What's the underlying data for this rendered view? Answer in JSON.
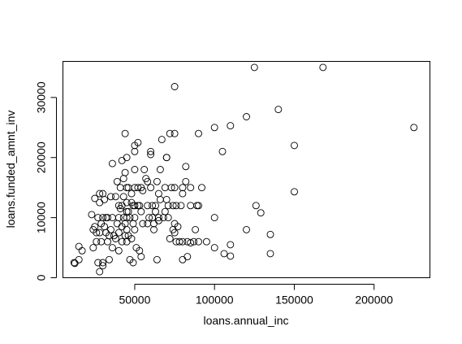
{
  "chart_data": {
    "type": "scatter",
    "xlabel": "loans.annual_inc",
    "ylabel": "loans.funded_amnt_inv",
    "xlim": [
      5000,
      235000
    ],
    "ylim": [
      0,
      36000
    ],
    "x_ticks": [
      50000,
      100000,
      150000,
      200000
    ],
    "x_tick_labels": [
      "50000",
      "100000",
      "150000",
      "200000"
    ],
    "y_ticks": [
      0,
      10000,
      20000,
      30000
    ],
    "y_tick_labels": [
      "0",
      "10000",
      "20000",
      "30000"
    ],
    "grid": false,
    "legend": "none",
    "points": [
      [
        12000,
        2500
      ],
      [
        12500,
        2400
      ],
      [
        15000,
        5200
      ],
      [
        17000,
        4500
      ],
      [
        15000,
        3000
      ],
      [
        23000,
        10500
      ],
      [
        24000,
        8000
      ],
      [
        24000,
        5000
      ],
      [
        25000,
        13200
      ],
      [
        25000,
        8500
      ],
      [
        26000,
        7500
      ],
      [
        26000,
        6000
      ],
      [
        27000,
        10000
      ],
      [
        27000,
        2500
      ],
      [
        28000,
        14000
      ],
      [
        28000,
        12500
      ],
      [
        28000,
        7500
      ],
      [
        28000,
        1000
      ],
      [
        29000,
        9000
      ],
      [
        29000,
        6000
      ],
      [
        30000,
        14000
      ],
      [
        30000,
        10000
      ],
      [
        30000,
        2500
      ],
      [
        30000,
        2000
      ],
      [
        31000,
        13000
      ],
      [
        31000,
        8500
      ],
      [
        32000,
        10000
      ],
      [
        32000,
        7500
      ],
      [
        33000,
        10000
      ],
      [
        33000,
        6000
      ],
      [
        34000,
        3000
      ],
      [
        34000,
        7000
      ],
      [
        35000,
        13500
      ],
      [
        35000,
        8000
      ],
      [
        36000,
        19000
      ],
      [
        36000,
        10000
      ],
      [
        36000,
        5000
      ],
      [
        37000,
        7000
      ],
      [
        38000,
        13500
      ],
      [
        38000,
        6500
      ],
      [
        39000,
        16000
      ],
      [
        39000,
        9000
      ],
      [
        40000,
        12000
      ],
      [
        40000,
        10000
      ],
      [
        40000,
        7500
      ],
      [
        40000,
        4500
      ],
      [
        41000,
        15000
      ],
      [
        41000,
        11500
      ],
      [
        42000,
        19500
      ],
      [
        42000,
        12000
      ],
      [
        42000,
        8500
      ],
      [
        42000,
        6000
      ],
      [
        43000,
        16500
      ],
      [
        43000,
        13500
      ],
      [
        43000,
        10000
      ],
      [
        44000,
        24000
      ],
      [
        44000,
        17500
      ],
      [
        44000,
        7000
      ],
      [
        44000,
        9000
      ],
      [
        45000,
        20000
      ],
      [
        45000,
        15000
      ],
      [
        45000,
        12500
      ],
      [
        45000,
        11000
      ],
      [
        45000,
        10000
      ],
      [
        45000,
        8000
      ],
      [
        45000,
        6000
      ],
      [
        46000,
        15000
      ],
      [
        46000,
        11000
      ],
      [
        46000,
        7000
      ],
      [
        47000,
        10000
      ],
      [
        47000,
        3000
      ],
      [
        48000,
        14000
      ],
      [
        48000,
        12500
      ],
      [
        48000,
        6500
      ],
      [
        49000,
        12000
      ],
      [
        49000,
        9000
      ],
      [
        49000,
        2500
      ],
      [
        50000,
        22000
      ],
      [
        50000,
        21000
      ],
      [
        50000,
        18000
      ],
      [
        50000,
        15000
      ],
      [
        50000,
        12000
      ],
      [
        50000,
        10000
      ],
      [
        50000,
        8000
      ],
      [
        51000,
        5000
      ],
      [
        52000,
        22500
      ],
      [
        52000,
        15000
      ],
      [
        52000,
        12000
      ],
      [
        53000,
        12000
      ],
      [
        53000,
        4500
      ],
      [
        54000,
        15000
      ],
      [
        54000,
        11000
      ],
      [
        54000,
        3500
      ],
      [
        55000,
        14500
      ],
      [
        55000,
        9000
      ],
      [
        56000,
        18000
      ],
      [
        57000,
        16500
      ],
      [
        58000,
        16000
      ],
      [
        58000,
        12000
      ],
      [
        58000,
        9000
      ],
      [
        59000,
        10000
      ],
      [
        60000,
        20500
      ],
      [
        60000,
        21000
      ],
      [
        60000,
        15000
      ],
      [
        61000,
        12000
      ],
      [
        61000,
        10000
      ],
      [
        62000,
        9000
      ],
      [
        62000,
        8000
      ],
      [
        63000,
        11000
      ],
      [
        63000,
        12000
      ],
      [
        64000,
        16000
      ],
      [
        64000,
        3000
      ],
      [
        65000,
        14000
      ],
      [
        65000,
        10000
      ],
      [
        65000,
        9500
      ],
      [
        66000,
        18000
      ],
      [
        66000,
        13000
      ],
      [
        67000,
        23000
      ],
      [
        68000,
        10000
      ],
      [
        69000,
        15000
      ],
      [
        69000,
        11000
      ],
      [
        70000,
        20000
      ],
      [
        70000,
        20000
      ],
      [
        70000,
        13000
      ],
      [
        71000,
        12000
      ],
      [
        71000,
        10000
      ],
      [
        72000,
        6500
      ],
      [
        72000,
        24000
      ],
      [
        73000,
        15000
      ],
      [
        74000,
        12000
      ],
      [
        74000,
        8000
      ],
      [
        75000,
        31800
      ],
      [
        75000,
        24000
      ],
      [
        75000,
        15000
      ],
      [
        75000,
        9000
      ],
      [
        75000,
        7500
      ],
      [
        76000,
        12000
      ],
      [
        76000,
        6000
      ],
      [
        77000,
        8500
      ],
      [
        78000,
        6000
      ],
      [
        79000,
        12000
      ],
      [
        80000,
        15000
      ],
      [
        80000,
        14000
      ],
      [
        80000,
        6000
      ],
      [
        80000,
        3000
      ],
      [
        82000,
        16000
      ],
      [
        82000,
        18500
      ],
      [
        83000,
        6000
      ],
      [
        83000,
        3500
      ],
      [
        85000,
        15000
      ],
      [
        85000,
        12000
      ],
      [
        85000,
        5800
      ],
      [
        87000,
        6000
      ],
      [
        88000,
        8000
      ],
      [
        89000,
        12000
      ],
      [
        90000,
        12000
      ],
      [
        90000,
        24000
      ],
      [
        90000,
        6000
      ],
      [
        92000,
        15000
      ],
      [
        95000,
        6000
      ],
      [
        100000,
        25000
      ],
      [
        100000,
        10000
      ],
      [
        100000,
        5000
      ],
      [
        105000,
        21000
      ],
      [
        106000,
        4000
      ],
      [
        110000,
        25300
      ],
      [
        110000,
        5500
      ],
      [
        110000,
        3600
      ],
      [
        120000,
        26800
      ],
      [
        120000,
        8000
      ],
      [
        125000,
        35000
      ],
      [
        126000,
        12000
      ],
      [
        129000,
        10800
      ],
      [
        135000,
        7200
      ],
      [
        135000,
        4000
      ],
      [
        140000,
        28000
      ],
      [
        150000,
        22000
      ],
      [
        150000,
        14300
      ],
      [
        168000,
        35000
      ],
      [
        225000,
        25000
      ]
    ]
  }
}
